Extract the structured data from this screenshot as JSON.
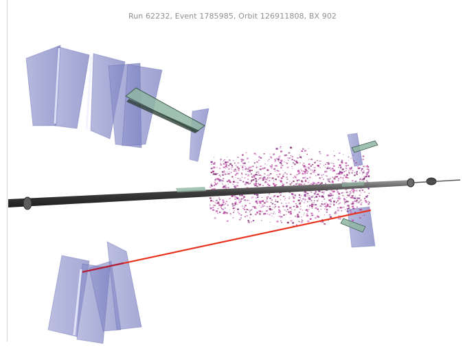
{
  "header": {
    "event_info": "Run 62232, Event 1785985, Orbit 126911808, BX 902"
  },
  "colors": {
    "background": "#ffffff",
    "muon_chamber": "#7a7fc2",
    "csc_segment": "#8fb5a2",
    "beam_pipe": "#4a4a4a",
    "calo_hits": "#a0307f",
    "track": "#e8321e"
  }
}
